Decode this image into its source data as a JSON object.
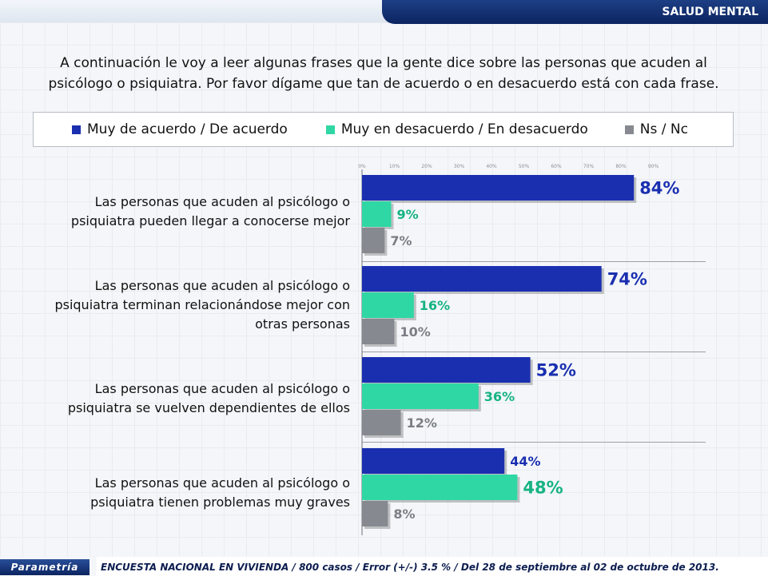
{
  "header": {
    "section": "SALUD MENTAL"
  },
  "question": "A continuación le voy a leer algunas frases que la gente dice sobre las personas que acuden al psicólogo o psiquiatra. Por favor dígame que tan de acuerdo o en desacuerdo está con cada frase.",
  "colors": {
    "agree": "#1a2fb0",
    "disagree": "#2fd7a4",
    "nsnc": "#868a90",
    "agree_text": "#1a2fb0",
    "disagree_text": "#15b380",
    "nsnc_text": "#7a7e84"
  },
  "chart_data": {
    "type": "bar",
    "orientation": "horizontal",
    "title": "",
    "xlim": [
      0,
      100
    ],
    "axis_ticks": [
      "0%",
      "10%",
      "20%",
      "30%",
      "40%",
      "50%",
      "60%",
      "70%",
      "80%",
      "90%"
    ],
    "legend": [
      "Muy de acuerdo / De acuerdo",
      "Muy en desacuerdo / En desacuerdo",
      "Ns / Nc"
    ],
    "categories": [
      "Las personas que acuden al psicólogo o psiquiatra pueden llegar a conocerse mejor",
      "Las personas que acuden al psicólogo o psiquiatra terminan relacionándose mejor con otras personas",
      "Las personas que acuden al psicólogo o psiquiatra se vuelven dependientes de ellos",
      "Las personas que acuden al psicólogo o psiquiatra tienen problemas muy graves"
    ],
    "series": [
      {
        "name": "Muy de acuerdo / De acuerdo",
        "values": [
          84,
          74,
          52,
          44
        ],
        "labels": [
          "84%",
          "74%",
          "52%",
          "44%"
        ]
      },
      {
        "name": "Muy en desacuerdo / En desacuerdo",
        "values": [
          9,
          16,
          36,
          48
        ],
        "labels": [
          "9%",
          "16%",
          "36%",
          "48%"
        ]
      },
      {
        "name": "Ns / Nc",
        "values": [
          7,
          10,
          12,
          8
        ],
        "labels": [
          "7%",
          "10%",
          "12%",
          "8%"
        ]
      }
    ]
  },
  "footer": {
    "logo": "Parametría",
    "text": "ENCUESTA NACIONAL EN VIVIENDA / 800 casos / Error (+/-) 3.5 % / Del 28 de septiembre al 02 de octubre de 2013."
  }
}
